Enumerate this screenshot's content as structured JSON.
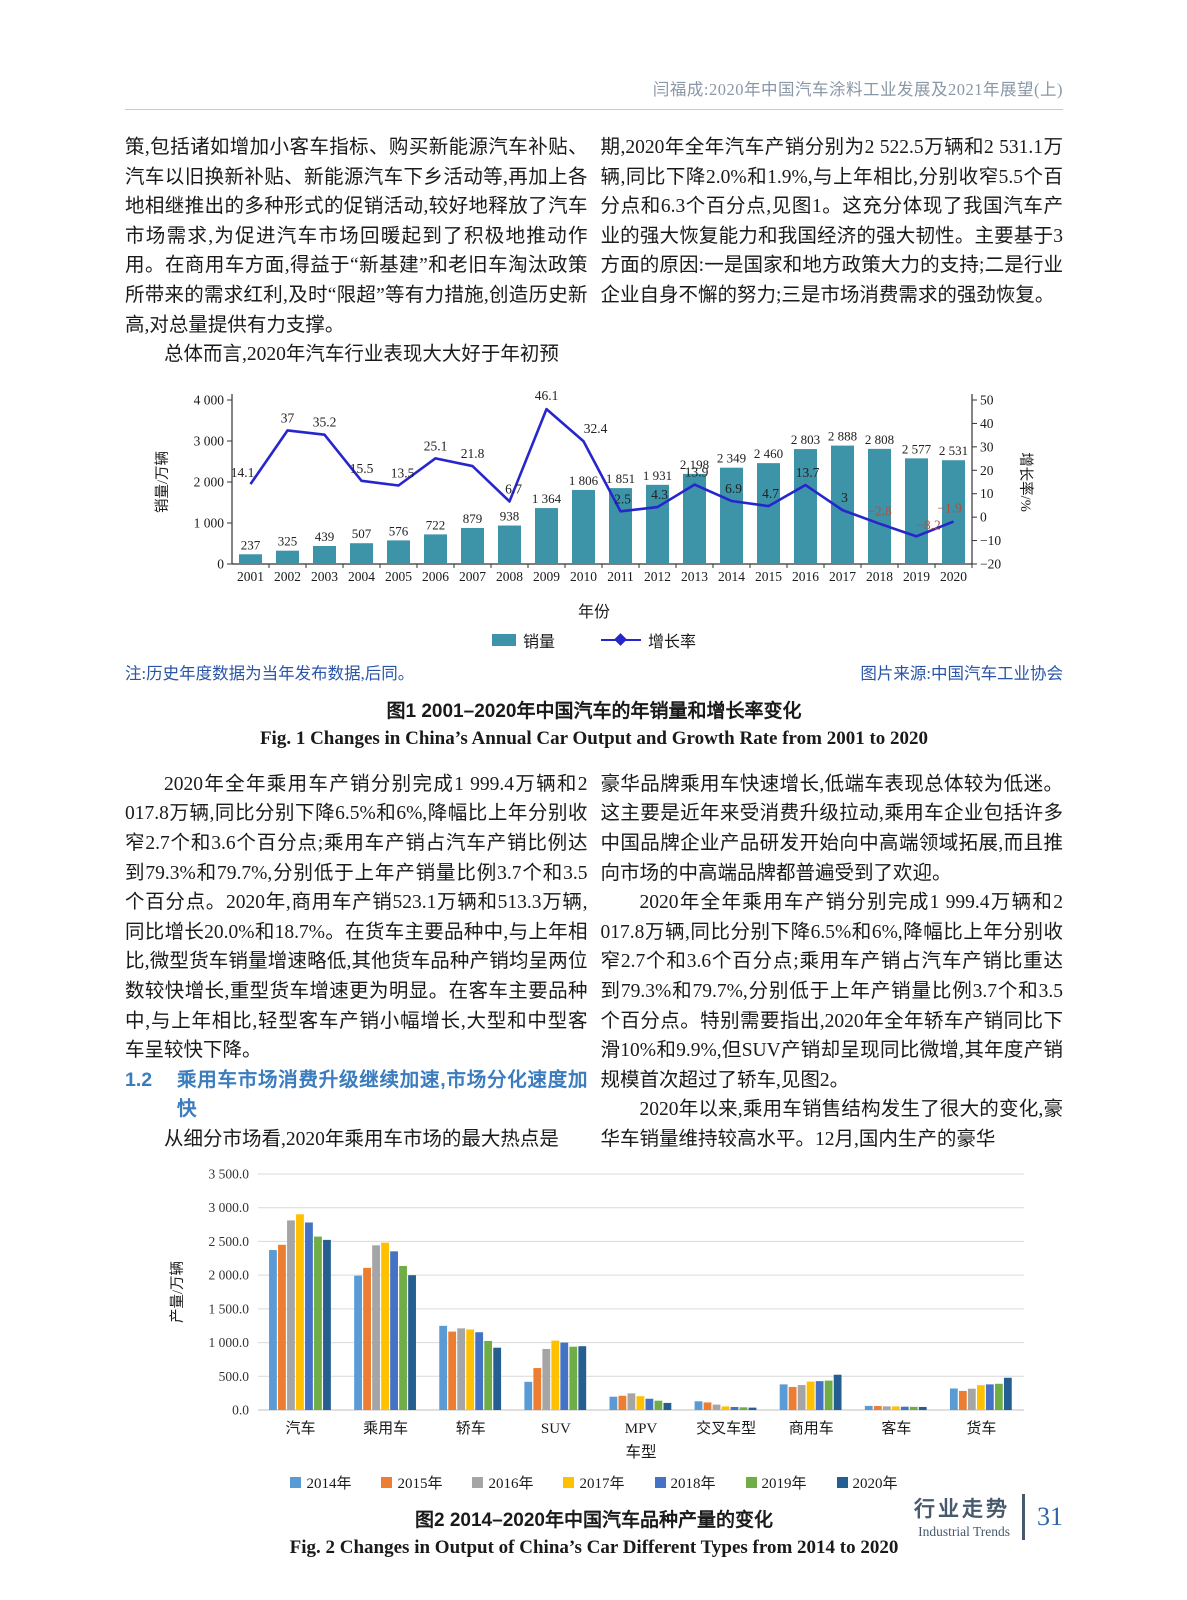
{
  "header": {
    "running_title": "闫福成:2020年中国汽车涂料工业发展及2021年展望(上)"
  },
  "body": {
    "left1": [
      "策,包括诸如增加小客车指标、购买新能源汽车补贴、汽车以旧换新补贴、新能源汽车下乡活动等,再加上各地相继推出的多种形式的促销活动,较好地释放了汽车市场需求,为促进汽车市场回暖起到了积极地推动作用。在商用车方面,得益于“新基建”和老旧车淘汰政策所带来的需求红利,及时“限超”等有力措施,创造历史新高,对总量提供有力支撑。",
      "总体而言,2020年汽车行业表现大大好于年初预"
    ],
    "right1": [
      "期,2020年全年汽车产销分别为2 522.5万辆和2 531.1万辆,同比下降2.0%和1.9%,与上年相比,分别收窄5.5个百分点和6.3个百分点,见图1。这充分体现了我国汽车产业的强大恢复能力和我国经济的强大韧性。主要基于3方面的原因:一是国家和地方政策大力的支持;二是行业企业自身不懈的努力;三是市场消费需求的强劲恢复。"
    ],
    "left2": [
      "2020年全年乘用车产销分别完成1 999.4万辆和2 017.8万辆,同比分别下降6.5%和6%,降幅比上年分别收窄2.7个和3.6个百分点;乘用车产销占汽车产销比例达到79.3%和79.7%,分别低于上年产销量比例3.7个和3.5个百分点。2020年,商用车产销523.1万辆和513.3万辆,同比增长20.0%和18.7%。在货车主要品种中,与上年相比,微型货车销量增速略低,其他货车品种产销均呈两位数较快增长,重型货车增速更为明显。在客车主要品种中,与上年相比,轻型客车产销小幅增长,大型和中型客车呈较快下降。",
      "从细分市场看,2020年乘用车市场的最大热点是"
    ],
    "section_heading": {
      "number": "1.2",
      "title": "乘用车市场消费升级继续加速,市场分化速度加快"
    },
    "right2": [
      "豪华品牌乘用车快速增长,低端车表现总体较为低迷。这主要是近年来受消费升级拉动,乘用车企业包括许多中国品牌企业产品研发开始向中高端领域拓展,而且推向市场的中高端品牌都普遍受到了欢迎。",
      "2020年全年乘用车产销分别完成1 999.4万辆和2 017.8万辆,同比分别下降6.5%和6%,降幅比上年分别收窄2.7个和3.6个百分点;乘用车产销占汽车产销比重达到79.3%和79.7%,分别低于上年产销量比例3.7个和3.5个百分点。特别需要指出,2020年全年轿车产销同比下滑10%和9.9%,但SUV产销却呈现同比微增,其年度产销规模首次超过了轿车,见图2。",
      "2020年以来,乘用车销售结构发生了很大的变化,豪华车销量维持较高水平。12月,国内生产的豪华"
    ]
  },
  "chart_data": [
    {
      "type": "bar+line",
      "title": "",
      "categories": [
        "2001",
        "2002",
        "2003",
        "2004",
        "2005",
        "2006",
        "2007",
        "2008",
        "2009",
        "2010",
        "2011",
        "2012",
        "2013",
        "2014",
        "2015",
        "2016",
        "2017",
        "2018",
        "2019",
        "2020"
      ],
      "series": [
        {
          "name": "销量",
          "kind": "bar",
          "values": [
            237,
            325,
            439,
            507,
            576,
            722,
            879,
            938,
            1364,
            1806,
            1851,
            1931,
            2198,
            2349,
            2460,
            2803,
            2888,
            2808,
            2577,
            2531
          ],
          "color": "#3d93a7"
        },
        {
          "name": "增长率",
          "kind": "line",
          "values": [
            14.1,
            37,
            35.2,
            15.5,
            13.5,
            25.1,
            21.8,
            6.7,
            46.1,
            32.4,
            2.5,
            4.3,
            13.9,
            6.9,
            4.7,
            13.7,
            3,
            -2.8,
            -8.2,
            -1.9
          ],
          "color": "#2626cc",
          "negative_label_color": "#b0503c"
        }
      ],
      "xlabel": "年份",
      "ylabel_left": "销量/万辆",
      "ylabel_right": "增长率/%",
      "ylim_left": [
        0,
        4000
      ],
      "yticks_left": [
        0,
        1000,
        2000,
        3000,
        4000
      ],
      "ylim_right": [
        -20,
        50
      ],
      "yticks_right": [
        -20,
        -10,
        0,
        10,
        20,
        30,
        40,
        50
      ],
      "grid": false,
      "legend_position": "bottom"
    },
    {
      "type": "bar",
      "title": "",
      "categories": [
        "汽车",
        "乘用车",
        "轿车",
        "SUV",
        "MPV",
        "交叉车型",
        "商用车",
        "客车",
        "货车"
      ],
      "series": [
        {
          "name": "2014年",
          "color": "#5b9bd5",
          "values": [
            2372,
            1992,
            1248,
            418,
            197,
            129,
            380,
            61,
            319
          ]
        },
        {
          "name": "2015年",
          "color": "#ed7d31",
          "values": [
            2450,
            2108,
            1163,
            622,
            211,
            112,
            342,
            59,
            283
          ]
        },
        {
          "name": "2016年",
          "color": "#a5a5a5",
          "values": [
            2812,
            2442,
            1211,
            905,
            247,
            80,
            370,
            54,
            316
          ]
        },
        {
          "name": "2017年",
          "color": "#ffc000",
          "values": [
            2902,
            2481,
            1194,
            1029,
            205,
            53,
            421,
            53,
            368
          ]
        },
        {
          "name": "2018年",
          "color": "#4472c4",
          "values": [
            2781,
            2353,
            1153,
            1000,
            167,
            45,
            428,
            49,
            380
          ]
        },
        {
          "name": "2019年",
          "color": "#70ad47",
          "values": [
            2572,
            2136,
            1024,
            939,
            138,
            40,
            436,
            47,
            389
          ]
        },
        {
          "name": "2020年",
          "color": "#255e91",
          "values": [
            2523,
            1999,
            924,
            946,
            105,
            35,
            523,
            45,
            478
          ]
        }
      ],
      "xlabel": "车型",
      "ylabel": "产量/万辆",
      "ylim": [
        0,
        3500
      ],
      "yticks": [
        0,
        500,
        1000,
        1500,
        2000,
        2500,
        3000,
        3500
      ],
      "grid": true,
      "legend_position": "bottom"
    }
  ],
  "fig1": {
    "note_left": "注:历史年度数据为当年发布数据,后同。",
    "note_source": "图片来源:中国汽车工业协会",
    "caption_zh": "图1  2001–2020年中国汽车的年销量和增长率变化",
    "caption_en": "Fig. 1  Changes in China’s Annual Car Output and Growth Rate from 2001 to 2020",
    "legend": [
      "销量",
      "增长率"
    ]
  },
  "fig2": {
    "caption_zh": "图2  2014–2020年中国汽车品种产量的变化",
    "caption_en": "Fig. 2  Changes in Output of China’s Car Different Types from 2014 to 2020"
  },
  "footer": {
    "section_zh": "行业走势",
    "section_en": "Industrial Trends",
    "page_number": "31"
  }
}
